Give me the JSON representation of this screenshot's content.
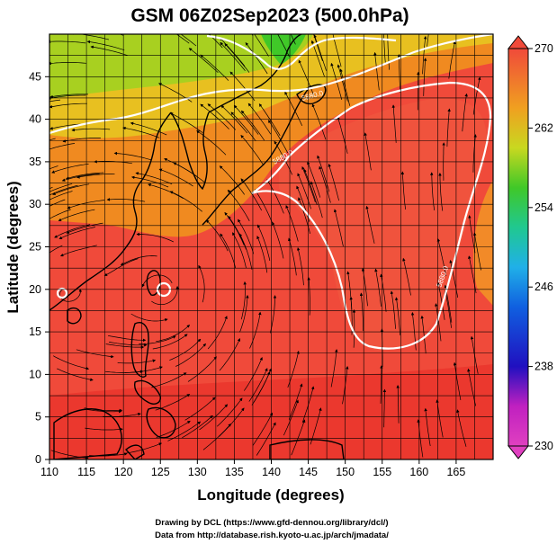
{
  "title": "GSM 06Z02Sep2023 (500.0hPa)",
  "xlabel": "Longitude (degrees)",
  "ylabel": "Latitude (degrees)",
  "x_ticks": [
    "110",
    "115",
    "120",
    "125",
    "130",
    "135",
    "140",
    "145",
    "150",
    "155",
    "160",
    "165"
  ],
  "y_ticks": [
    "0",
    "5",
    "10",
    "15",
    "20",
    "25",
    "30",
    "35",
    "40",
    "45"
  ],
  "colorbar_ticks": [
    "270",
    "262",
    "254",
    "246",
    "238",
    "230"
  ],
  "contour_labels": [
    "5880.0",
    "5880.0",
    "5880.0"
  ],
  "credits": {
    "line1": "Drawing by DCL (https://www.gfd-dennou.org/library/dcl/)",
    "line2": "Data from http://database.rish.kyoto-u.ac.jp/arch/jmadata/"
  },
  "colors": {
    "warm_red": "#f04a3a",
    "orange": "#f08a20",
    "yellow": "#e8d020",
    "green": "#40c828",
    "contour": "#ffffff"
  },
  "chart_data": {
    "type": "map",
    "xlim": [
      110,
      170
    ],
    "ylim": [
      0,
      50
    ],
    "colorbar_range": [
      230,
      270
    ],
    "variable": "temperature (K) at 500.0hPa with streamlines",
    "contour_level": 5880.0
  }
}
